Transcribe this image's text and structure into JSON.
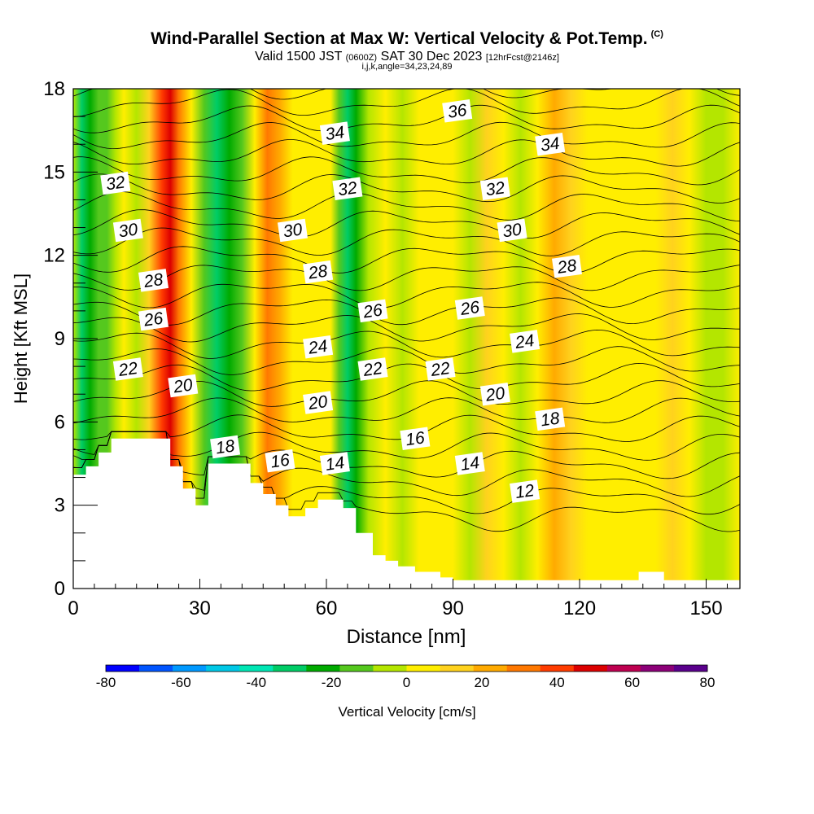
{
  "header": {
    "title": "Wind-Parallel Section at Max W: Vertical Velocity & Pot.Temp.",
    "copyright": "(C)",
    "valid_main": "Valid 1500 JST",
    "valid_z": "(0600Z)",
    "valid_date": "SAT 30 Dec 2023",
    "valid_fcst": "[12hrFcst@2146z]",
    "indices": "i,j,k,angle=34,23,24,89"
  },
  "chart_data": {
    "type": "heatmap",
    "xlabel": "Distance [nm]",
    "ylabel": "Height [Kft MSL]",
    "xlim": [
      0,
      158
    ],
    "ylim": [
      0,
      18
    ],
    "x_ticks": [
      0,
      30,
      60,
      90,
      120,
      150
    ],
    "y_ticks": [
      0,
      3,
      6,
      9,
      12,
      15,
      18
    ],
    "colorbar": {
      "label": "Vertical Velocity [cm/s]",
      "ticks": [
        -80,
        -60,
        -40,
        -20,
        0,
        20,
        40,
        60,
        80
      ],
      "bounds": [
        -80,
        80
      ],
      "colors": [
        "#0000ff",
        "#0055ff",
        "#0099ff",
        "#00c8e6",
        "#00e6b4",
        "#00cc66",
        "#00aa00",
        "#55c81e",
        "#b4e600",
        "#ffee00",
        "#ffd21e",
        "#ffaa00",
        "#ff7800",
        "#ff3c00",
        "#dc0000",
        "#be0050",
        "#8c0078",
        "#5a008c"
      ]
    },
    "shading_profile": {
      "x": [
        0,
        2,
        4,
        6,
        8,
        10,
        12,
        15,
        18,
        21,
        23,
        25,
        28,
        31,
        34,
        37,
        40,
        43,
        46,
        49,
        52,
        55,
        58,
        61,
        63,
        65,
        67,
        70,
        74,
        78,
        82,
        86,
        90,
        94,
        98,
        102,
        106,
        110,
        114,
        118,
        122,
        126,
        130,
        134,
        138,
        142,
        146,
        150,
        154,
        158
      ],
      "vertical_velocity": [
        -8,
        -35,
        -25,
        -10,
        -15,
        -5,
        0,
        -3,
        10,
        40,
        50,
        35,
        8,
        -10,
        -30,
        -25,
        -10,
        8,
        30,
        20,
        8,
        0,
        3,
        6,
        -12,
        -30,
        -22,
        -8,
        0,
        -6,
        0,
        5,
        0,
        -2,
        10,
        6,
        -3,
        5,
        18,
        12,
        0,
        3,
        5,
        0,
        3,
        10,
        8,
        -8,
        -3,
        0
      ]
    },
    "theta_levels": [
      12,
      13,
      14,
      15,
      16,
      17,
      18,
      19,
      20,
      21,
      22,
      23,
      24,
      25,
      26,
      27,
      28,
      29,
      30,
      31,
      32,
      33,
      34,
      35,
      36,
      37
    ],
    "theta_labels": [
      {
        "value": "36",
        "x": 91,
        "y": 17.2
      },
      {
        "value": "34",
        "x": 62,
        "y": 16.4
      },
      {
        "value": "34",
        "x": 113,
        "y": 16.0
      },
      {
        "value": "32",
        "x": 10,
        "y": 14.6
      },
      {
        "value": "32",
        "x": 65,
        "y": 14.4
      },
      {
        "value": "32",
        "x": 100,
        "y": 14.4
      },
      {
        "value": "30",
        "x": 13,
        "y": 12.9
      },
      {
        "value": "30",
        "x": 52,
        "y": 12.9
      },
      {
        "value": "30",
        "x": 104,
        "y": 12.9
      },
      {
        "value": "28",
        "x": 19,
        "y": 11.1
      },
      {
        "value": "28",
        "x": 58,
        "y": 11.4
      },
      {
        "value": "28",
        "x": 117,
        "y": 11.6
      },
      {
        "value": "26",
        "x": 19,
        "y": 9.7
      },
      {
        "value": "26",
        "x": 71,
        "y": 10.0
      },
      {
        "value": "26",
        "x": 94,
        "y": 10.1
      },
      {
        "value": "24",
        "x": 58,
        "y": 8.7
      },
      {
        "value": "24",
        "x": 107,
        "y": 8.9
      },
      {
        "value": "22",
        "x": 13,
        "y": 7.9
      },
      {
        "value": "22",
        "x": 71,
        "y": 7.9
      },
      {
        "value": "22",
        "x": 87,
        "y": 7.9
      },
      {
        "value": "20",
        "x": 26,
        "y": 7.3
      },
      {
        "value": "20",
        "x": 58,
        "y": 6.7
      },
      {
        "value": "20",
        "x": 100,
        "y": 7.0
      },
      {
        "value": "18",
        "x": 36,
        "y": 5.1
      },
      {
        "value": "18",
        "x": 113,
        "y": 6.1
      },
      {
        "value": "16",
        "x": 49,
        "y": 4.6
      },
      {
        "value": "16",
        "x": 81,
        "y": 5.4
      },
      {
        "value": "14",
        "x": 62,
        "y": 4.5
      },
      {
        "value": "14",
        "x": 94,
        "y": 4.5
      },
      {
        "value": "12",
        "x": 107,
        "y": 3.5
      }
    ],
    "terrain": {
      "x": [
        0,
        0,
        3,
        3,
        6,
        6,
        9,
        9,
        23,
        23,
        26,
        26,
        29,
        29,
        32,
        32,
        36,
        36,
        42,
        42,
        45,
        45,
        48,
        48,
        51,
        51,
        55,
        55,
        58,
        58,
        64,
        64,
        67,
        67,
        71,
        71,
        74,
        74,
        77,
        77,
        81,
        81,
        87,
        87,
        90,
        90,
        134,
        134,
        140,
        140,
        158
      ],
      "height": [
        0,
        4.1,
        4.1,
        4.4,
        4.4,
        4.9,
        4.9,
        5.4,
        5.4,
        4.4,
        4.4,
        3.6,
        3.6,
        3.0,
        3.0,
        4.5,
        4.5,
        4.5,
        4.5,
        3.8,
        3.8,
        3.4,
        3.4,
        3.0,
        3.0,
        2.6,
        2.6,
        2.9,
        2.9,
        3.2,
        3.2,
        2.9,
        2.9,
        2.0,
        2.0,
        1.2,
        1.2,
        1.0,
        1.0,
        0.8,
        0.8,
        0.6,
        0.6,
        0.4,
        0.4,
        0.3,
        0.3,
        0.6,
        0.6,
        0.3,
        0.3
      ]
    }
  }
}
